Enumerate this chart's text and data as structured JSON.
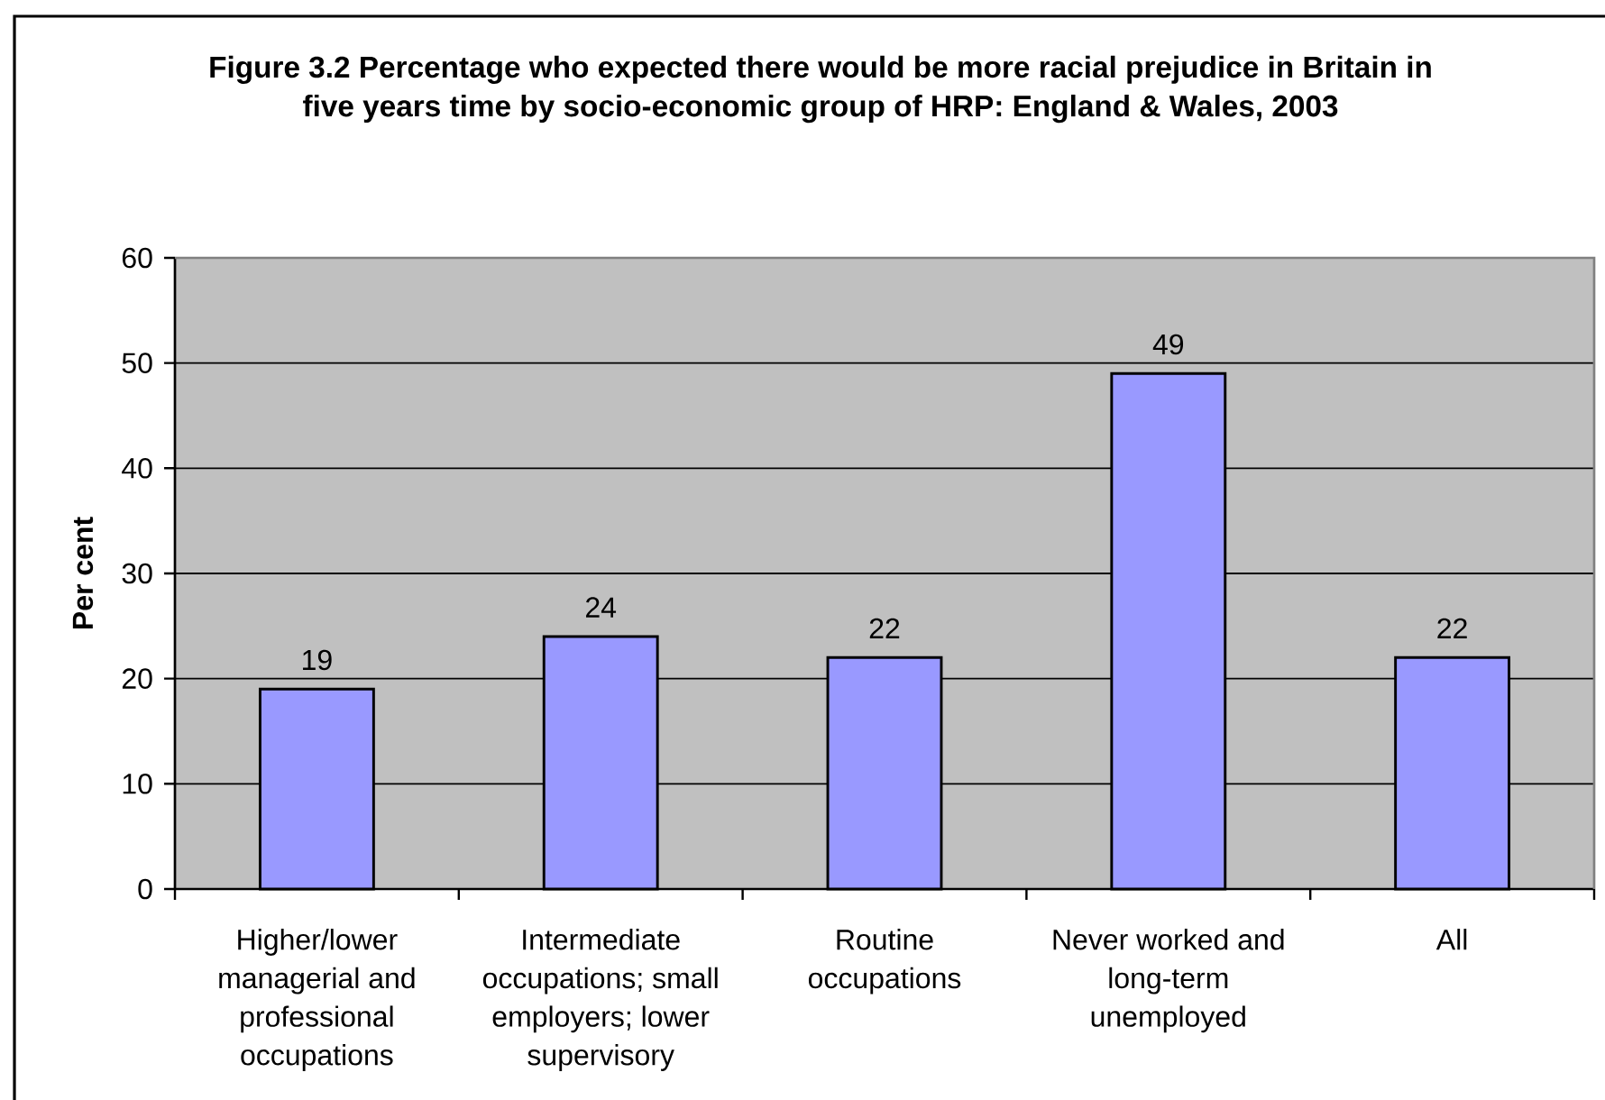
{
  "chart_data": {
    "type": "bar",
    "title": "Figure 3.2 Percentage who expected there would be more racial prejudice in Britain in five years time by socio-economic group of HRP: England & Wales, 2003",
    "ylabel": "Per cent",
    "categories": [
      "Higher/lower managerial and professional occupations",
      "Intermediate occupations; small employers; lower supervisory",
      "Routine occupations",
      "Never worked and long-term unemployed",
      "All"
    ],
    "values": [
      19,
      24,
      22,
      49,
      22
    ],
    "color": "#9999ff",
    "ylim": [
      0,
      60
    ],
    "yticks": [
      0,
      10,
      20,
      30,
      40,
      50,
      60
    ],
    "grid": "y",
    "data_labels": true
  }
}
